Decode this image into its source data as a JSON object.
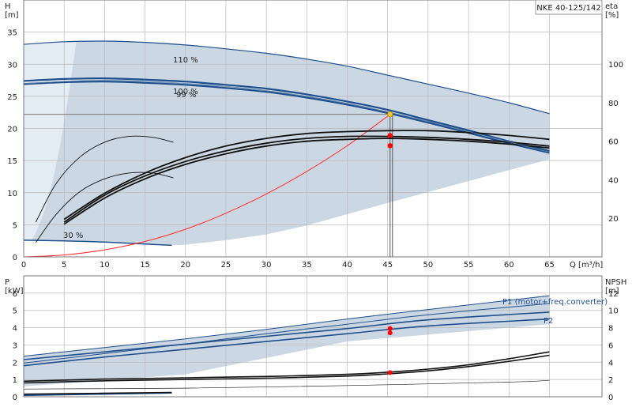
{
  "colors": {
    "region_fill": "#cbd8e4",
    "light_region": "#e4ecf4",
    "head_curve": "#1f4e8c",
    "eff_curve": "#111111",
    "system_curve": "#ff2a2a",
    "dp_marker": "#ff0000",
    "dp_head_marker": "#f2cc2a",
    "grid": "#b9b9b9"
  },
  "chart_data": [
    {
      "type": "line",
      "title": "NKE 40-125/142",
      "xlabel": "Q [m³/h]",
      "ylabel": "H\n[m]",
      "y2label": "eta\n[%]",
      "xlim": [
        0,
        71.5
      ],
      "ylim": [
        0,
        40
      ],
      "y2lim": [
        0,
        133.3
      ],
      "xticks": [
        0,
        5,
        10,
        15,
        20,
        25,
        30,
        35,
        40,
        45,
        50,
        55,
        60,
        65
      ],
      "yticks": [
        0,
        5,
        10,
        15,
        20,
        25,
        30,
        35
      ],
      "y2ticks": [
        20,
        40,
        60,
        80,
        100
      ],
      "grid": true,
      "curve_labels": [
        "110 %",
        "100 %",
        "99 %",
        "30 %"
      ],
      "series": [
        {
          "name": "110 %",
          "axis": "H",
          "x": [
            0,
            5,
            10,
            15,
            20,
            25,
            30,
            35,
            40,
            45,
            50,
            55,
            60,
            65
          ],
          "y": [
            33.1,
            33.5,
            33.6,
            33.4,
            33.0,
            32.4,
            31.7,
            30.8,
            29.7,
            28.3,
            26.9,
            25.5,
            24.0,
            22.3
          ]
        },
        {
          "name": "100 %",
          "axis": "H",
          "x": [
            0,
            5,
            10,
            15,
            20,
            25,
            30,
            35,
            40,
            45,
            50,
            55,
            60,
            65
          ],
          "y": [
            27.4,
            27.7,
            27.8,
            27.6,
            27.3,
            26.8,
            26.2,
            25.3,
            24.2,
            22.9,
            21.3,
            19.7,
            18.0,
            16.5
          ]
        },
        {
          "name": "99 %",
          "axis": "H",
          "x": [
            0,
            5,
            10,
            15,
            20,
            25,
            30,
            35,
            40,
            45,
            50,
            55,
            60,
            65
          ],
          "y": [
            26.9,
            27.2,
            27.3,
            27.1,
            26.8,
            26.3,
            25.7,
            24.8,
            23.7,
            22.4,
            20.9,
            19.3,
            17.7,
            16.2
          ]
        },
        {
          "name": "30 %",
          "axis": "H",
          "x": [
            0,
            5,
            10,
            15,
            18.3
          ],
          "y": [
            2.6,
            2.5,
            2.3,
            2.0,
            1.8
          ]
        },
        {
          "name": "system curve",
          "axis": "H",
          "x": [
            0,
            5,
            10,
            15,
            20,
            25,
            30,
            35,
            40,
            45.3
          ],
          "y": [
            0,
            0.3,
            1.1,
            2.4,
            4.3,
            6.8,
            9.8,
            13.3,
            17.3,
            22.2
          ]
        },
        {
          "name": "eta 110 %",
          "axis": "eta",
          "x": [
            5,
            10,
            15,
            20,
            25,
            30,
            35,
            40,
            45,
            50,
            55,
            60,
            65
          ],
          "y": [
            19.5,
            33,
            43.5,
            51.5,
            57.5,
            61.5,
            64,
            65,
            65.5,
            65.5,
            64.5,
            63,
            61
          ]
        },
        {
          "name": "eta 100 %",
          "axis": "eta",
          "x": [
            5,
            10,
            15,
            20,
            25,
            30,
            35,
            40,
            45,
            50,
            55,
            60,
            65
          ],
          "y": [
            18,
            32,
            42,
            49.5,
            55,
            59,
            61.5,
            62.5,
            62.5,
            62,
            61,
            59.5,
            57.5
          ]
        },
        {
          "name": "eta 99 %",
          "axis": "eta",
          "x": [
            5,
            10,
            15,
            20,
            25,
            30,
            35,
            40,
            45,
            50,
            55,
            60,
            65
          ],
          "y": [
            17,
            30.5,
            40.5,
            48,
            53.5,
            57.5,
            60,
            61,
            61.5,
            61,
            60,
            58.5,
            56.5
          ]
        },
        {
          "name": "eta 30 % a",
          "axis": "eta",
          "x": [
            1.5,
            4,
            7,
            10,
            13,
            16,
            18.5
          ],
          "y": [
            18,
            38,
            52,
            59.5,
            62.5,
            62,
            59.5
          ]
        },
        {
          "name": "eta 30 % b",
          "axis": "eta",
          "x": [
            1.5,
            4,
            7,
            10,
            13,
            16,
            18.5
          ],
          "y": [
            7.5,
            22,
            34,
            40.5,
            43.5,
            43.5,
            41
          ]
        }
      ],
      "duty_point": {
        "x": 45.3,
        "H": 22.2,
        "eta": [
          63,
          57.7
        ]
      }
    },
    {
      "type": "line",
      "xlabel": "",
      "ylabel": "P\n[kW]",
      "y2label": "NPSH\n[m]",
      "xlim": [
        0,
        71.5
      ],
      "ylim": [
        0,
        7
      ],
      "y2lim": [
        0,
        14
      ],
      "yticks": [
        0,
        1,
        2,
        3,
        4,
        5,
        6
      ],
      "y2ticks": [
        0,
        2,
        4,
        6,
        8,
        10,
        12
      ],
      "grid": true,
      "curve_labels": [
        "P1 (motor+freq.converter)",
        "P2"
      ],
      "series": [
        {
          "name": "P1 110 %",
          "axis": "P",
          "x": [
            0,
            10,
            20,
            30,
            40,
            50,
            65
          ],
          "y": [
            2.35,
            2.85,
            3.35,
            3.9,
            4.5,
            5.05,
            5.85
          ]
        },
        {
          "name": "P1 100 %",
          "axis": "P",
          "x": [
            0,
            10,
            20,
            30,
            40,
            50,
            65
          ],
          "y": [
            2.15,
            2.6,
            3.05,
            3.5,
            3.95,
            4.45,
            4.9
          ]
        },
        {
          "name": "P2 110 %",
          "axis": "P",
          "x": [
            0,
            10,
            20,
            30,
            40,
            50,
            65
          ],
          "y": [
            1.95,
            2.5,
            3.05,
            3.65,
            4.2,
            4.75,
            5.4
          ]
        },
        {
          "name": "P2 100 %",
          "axis": "P",
          "x": [
            0,
            10,
            20,
            30,
            40,
            50,
            65
          ],
          "y": [
            1.8,
            2.3,
            2.75,
            3.2,
            3.65,
            4.1,
            4.5
          ]
        },
        {
          "name": "P 30 %",
          "axis": "P",
          "x": [
            0,
            18.3
          ],
          "y": [
            0.08,
            0.22
          ]
        },
        {
          "name": "NPSH 100 %",
          "axis": "NPSH",
          "x": [
            0,
            10,
            20,
            30,
            40,
            45,
            50,
            55,
            60,
            65
          ],
          "y": [
            1.8,
            2.05,
            2.2,
            2.35,
            2.6,
            2.85,
            3.2,
            3.7,
            4.4,
            5.2
          ]
        },
        {
          "name": "NPSH 99 %",
          "axis": "NPSH",
          "x": [
            0,
            10,
            20,
            30,
            40,
            45,
            50,
            55,
            60,
            65
          ],
          "y": [
            1.6,
            1.85,
            2.0,
            2.15,
            2.4,
            2.65,
            3.0,
            3.5,
            4.1,
            4.8
          ]
        },
        {
          "name": "NPSH 30 %",
          "axis": "NPSH",
          "x": [
            0,
            18.3
          ],
          "y": [
            0.3,
            0.5
          ]
        }
      ],
      "duty_point": {
        "x": 45.3,
        "P": [
          3.95,
          3.7
        ],
        "NPSH": 2.8
      }
    }
  ]
}
